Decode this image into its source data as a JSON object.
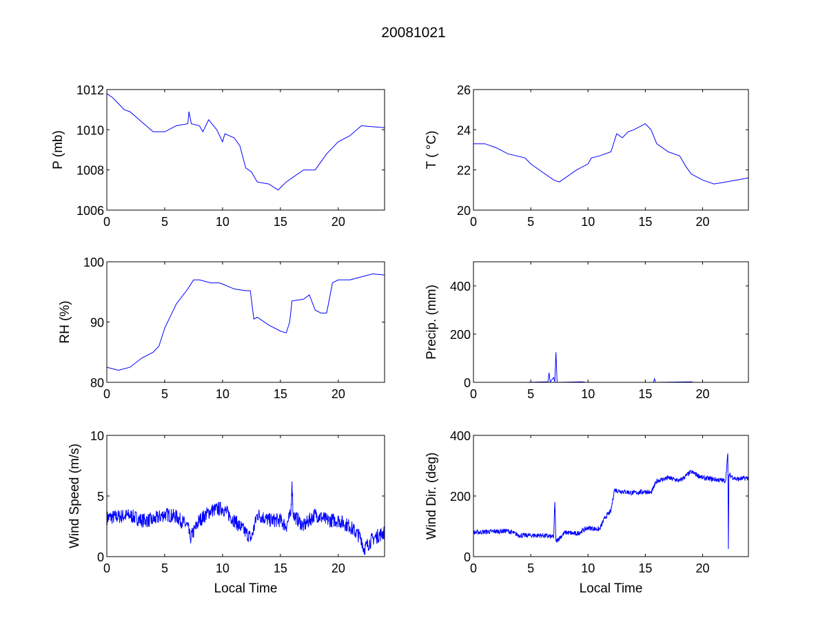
{
  "chart_data": {
    "type": "line",
    "title": "20081021",
    "line_color": "#0000ff",
    "subplots": [
      {
        "ylabel": "P (mb)",
        "xlabel": "",
        "xlim": [
          0,
          24
        ],
        "ylim": [
          1006,
          1012
        ],
        "xticks": [
          0,
          5,
          10,
          15,
          20
        ],
        "yticks": [
          1006,
          1008,
          1010,
          1012
        ],
        "points": [
          [
            0,
            1011.8
          ],
          [
            0.5,
            1011.6
          ],
          [
            1,
            1011.3
          ],
          [
            1.5,
            1011.0
          ],
          [
            2,
            1010.9
          ],
          [
            3,
            1010.4
          ],
          [
            4,
            1009.9
          ],
          [
            5,
            1009.9
          ],
          [
            6,
            1010.2
          ],
          [
            7,
            1010.3
          ],
          [
            7.1,
            1010.9
          ],
          [
            7.3,
            1010.3
          ],
          [
            8,
            1010.2
          ],
          [
            8.3,
            1009.9
          ],
          [
            8.8,
            1010.5
          ],
          [
            9.5,
            1010.0
          ],
          [
            10,
            1009.4
          ],
          [
            10.2,
            1009.8
          ],
          [
            11,
            1009.6
          ],
          [
            11.5,
            1009.2
          ],
          [
            12,
            1008.1
          ],
          [
            12.5,
            1007.9
          ],
          [
            13,
            1007.4
          ],
          [
            14,
            1007.3
          ],
          [
            14.8,
            1007.0
          ],
          [
            15.5,
            1007.4
          ],
          [
            16,
            1007.6
          ],
          [
            17,
            1008.0
          ],
          [
            18,
            1008.0
          ],
          [
            19,
            1008.8
          ],
          [
            20,
            1009.4
          ],
          [
            21,
            1009.7
          ],
          [
            22,
            1010.2
          ],
          [
            24,
            1010.1
          ]
        ]
      },
      {
        "ylabel": "T ( °C)",
        "xlabel": "",
        "xlim": [
          0,
          24
        ],
        "ylim": [
          20,
          26
        ],
        "xticks": [
          0,
          5,
          10,
          15,
          20
        ],
        "yticks": [
          20,
          22,
          24,
          26
        ],
        "points": [
          [
            0,
            23.3
          ],
          [
            1,
            23.3
          ],
          [
            2,
            23.1
          ],
          [
            3,
            22.8
          ],
          [
            4.5,
            22.6
          ],
          [
            5,
            22.3
          ],
          [
            6,
            21.9
          ],
          [
            7,
            21.5
          ],
          [
            7.5,
            21.4
          ],
          [
            8,
            21.6
          ],
          [
            9,
            22.0
          ],
          [
            10,
            22.3
          ],
          [
            10.3,
            22.6
          ],
          [
            11,
            22.7
          ],
          [
            12,
            22.9
          ],
          [
            12.5,
            23.8
          ],
          [
            13,
            23.6
          ],
          [
            13.5,
            23.9
          ],
          [
            14,
            24.0
          ],
          [
            15,
            24.3
          ],
          [
            15.5,
            24.0
          ],
          [
            16,
            23.3
          ],
          [
            17,
            22.9
          ],
          [
            18,
            22.7
          ],
          [
            18.5,
            22.2
          ],
          [
            19,
            21.8
          ],
          [
            20,
            21.5
          ],
          [
            21,
            21.3
          ],
          [
            22,
            21.4
          ],
          [
            24,
            21.6
          ]
        ]
      },
      {
        "ylabel": "RH (%)",
        "xlabel": "",
        "xlim": [
          0,
          24
        ],
        "ylim": [
          80,
          100
        ],
        "xticks": [
          0,
          5,
          10,
          15,
          20
        ],
        "yticks": [
          80,
          90,
          100
        ],
        "points": [
          [
            0,
            82.5
          ],
          [
            1,
            82
          ],
          [
            2,
            82.5
          ],
          [
            3,
            84
          ],
          [
            4,
            85
          ],
          [
            4.5,
            86
          ],
          [
            5,
            89
          ],
          [
            6,
            93
          ],
          [
            7,
            95.5
          ],
          [
            7.5,
            97
          ],
          [
            8,
            97
          ],
          [
            9,
            96.5
          ],
          [
            9.7,
            96.5
          ],
          [
            10,
            96.3
          ],
          [
            11,
            95.5
          ],
          [
            12,
            95.2
          ],
          [
            12.4,
            95.2
          ],
          [
            12.7,
            90.5
          ],
          [
            13,
            90.8
          ],
          [
            14,
            89.5
          ],
          [
            15,
            88.5
          ],
          [
            15.5,
            88.2
          ],
          [
            15.8,
            90
          ],
          [
            16,
            93.5
          ],
          [
            17,
            93.8
          ],
          [
            17.5,
            94.5
          ],
          [
            18,
            92
          ],
          [
            18.5,
            91.5
          ],
          [
            19,
            91.5
          ],
          [
            19.5,
            96.5
          ],
          [
            20,
            97
          ],
          [
            21,
            97
          ],
          [
            22,
            97.5
          ],
          [
            23,
            98
          ],
          [
            24,
            97.8
          ]
        ]
      },
      {
        "ylabel": "Precip. (mm)",
        "xlabel": "",
        "xlim": [
          0,
          24
        ],
        "ylim": [
          0,
          500
        ],
        "xticks": [
          0,
          5,
          10,
          15,
          20
        ],
        "yticks": [
          0,
          200,
          400
        ],
        "points": [
          [
            4.5,
            0
          ],
          [
            6.5,
            2
          ],
          [
            6.6,
            40
          ],
          [
            6.7,
            2
          ],
          [
            7.0,
            20
          ],
          [
            7.1,
            2
          ],
          [
            7.2,
            125
          ],
          [
            7.3,
            0
          ],
          [
            9.5,
            2
          ],
          [
            9.8,
            0
          ],
          [
            15.7,
            0
          ],
          [
            15.8,
            15
          ],
          [
            15.9,
            0
          ],
          [
            19,
            2
          ],
          [
            19.2,
            0
          ]
        ]
      },
      {
        "ylabel": "Wind Speed (m/s)",
        "xlabel": "Local Time",
        "xlim": [
          0,
          24
        ],
        "ylim": [
          0,
          10
        ],
        "xticks": [
          0,
          5,
          10,
          15,
          20
        ],
        "yticks": [
          0,
          5,
          10
        ],
        "noise": 0.6,
        "points": [
          [
            0,
            3.2
          ],
          [
            1,
            3.3
          ],
          [
            2,
            3.4
          ],
          [
            3,
            3.0
          ],
          [
            4,
            3.0
          ],
          [
            5,
            3.5
          ],
          [
            6,
            3.3
          ],
          [
            7,
            2.5
          ],
          [
            7.2,
            1.5
          ],
          [
            8,
            3.0
          ],
          [
            9,
            3.8
          ],
          [
            10,
            4.0
          ],
          [
            11,
            3.0
          ],
          [
            12,
            2.0
          ],
          [
            12.5,
            1.5
          ],
          [
            13,
            3.5
          ],
          [
            14,
            3.0
          ],
          [
            15,
            3.0
          ],
          [
            15.5,
            2.5
          ],
          [
            15.9,
            3.5
          ],
          [
            16,
            6.2
          ],
          [
            16.1,
            3.5
          ],
          [
            17,
            2.5
          ],
          [
            18,
            3.5
          ],
          [
            19,
            3.0
          ],
          [
            20,
            3.0
          ],
          [
            21,
            2.5
          ],
          [
            22,
            1.5
          ],
          [
            22.2,
            0.6
          ],
          [
            23,
            1.5
          ],
          [
            24,
            2.0
          ]
        ]
      },
      {
        "ylabel": "Wind Dir. (deg)",
        "xlabel": "Local Time",
        "xlim": [
          0,
          24
        ],
        "ylim": [
          0,
          400
        ],
        "xticks": [
          0,
          5,
          10,
          15,
          20
        ],
        "yticks": [
          0,
          200,
          400
        ],
        "noise": 8,
        "points": [
          [
            0,
            80
          ],
          [
            3,
            85
          ],
          [
            4,
            70
          ],
          [
            6,
            70
          ],
          [
            7,
            65
          ],
          [
            7.1,
            180
          ],
          [
            7.2,
            50
          ],
          [
            8,
            80
          ],
          [
            9,
            75
          ],
          [
            10,
            95
          ],
          [
            11,
            90
          ],
          [
            11.5,
            130
          ],
          [
            12,
            150
          ],
          [
            12.3,
            220
          ],
          [
            13,
            215
          ],
          [
            14,
            210
          ],
          [
            15,
            215
          ],
          [
            15.5,
            210
          ],
          [
            16,
            250
          ],
          [
            17,
            260
          ],
          [
            18,
            250
          ],
          [
            19,
            280
          ],
          [
            20,
            260
          ],
          [
            22,
            250
          ],
          [
            22.2,
            340
          ],
          [
            22.25,
            25
          ],
          [
            22.3,
            270
          ],
          [
            23,
            255
          ],
          [
            24,
            260
          ]
        ]
      }
    ]
  }
}
